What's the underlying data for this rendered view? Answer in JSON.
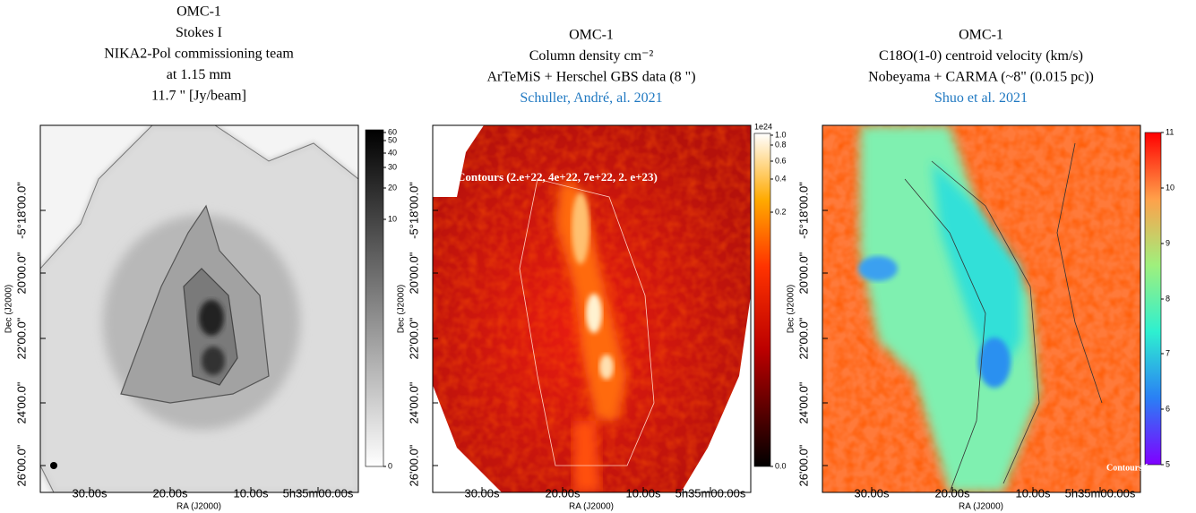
{
  "panels": [
    {
      "title_lines": [
        "OMC-1",
        "Stokes I",
        "NIKA2-Pol commissioning team",
        "at 1.15 mm",
        "11.7 \" [Jy/beam]"
      ],
      "xticks": [
        "30.00s",
        "20.00s",
        "10.00s",
        "5h35m00.00s"
      ],
      "yticks": [
        "26'00.0\"",
        "24'00.0\"",
        "22'00.0\"",
        "20'00.0\"",
        "-5°18'00.0\""
      ],
      "xlabel": "RA (J2000)",
      "ylabel": "Dec (J2000)",
      "colorbar_ticks": [
        60,
        50,
        40,
        30,
        20,
        10,
        0
      ]
    },
    {
      "title_lines": [
        "OMC-1",
        "Column density cm⁻²",
        "ArTeMiS + Herschel GBS data (8 \")"
      ],
      "title_link": "Schuller, André, al. 2021",
      "xticks": [
        "30.00s",
        "20.00s",
        "10.00s",
        "5h35m00.00s"
      ],
      "yticks": [
        "26'00.0\"",
        "24'00.0\"",
        "22'00.0\"",
        "20'00.0\"",
        "-5°18'00.0\""
      ],
      "xlabel": "RA (J2000)",
      "ylabel": "Dec (J2000)",
      "colorbar_ticks": [
        {
          "value": 1.0,
          "label": "1.0"
        },
        0.8,
        0.6,
        0.4,
        0.2,
        {
          "value": 0.0,
          "label": "0.0"
        }
      ],
      "colorbar_exponent": "1e24",
      "annotation": "Contours (2.e+22, 4e+22, 7e+22, 2. e+23)"
    },
    {
      "title_lines": [
        "OMC-1",
        "C18O(1-0) centroid velocity (km/s)",
        "Nobeyama + CARMA (~8\" (0.015 pc))"
      ],
      "title_link": "Shuo et al. 2021",
      "xticks": [
        "30.00s",
        "20.00s",
        "10.00s",
        "5h35m00.00s"
      ],
      "yticks": [
        "26'00.0\"",
        "24'00.0\"",
        "22'00.0\"",
        "20'00.0\"",
        "-5°18'00.0\""
      ],
      "xlabel": "RA (J2000)",
      "ylabel": "Dec (J2000)",
      "colorbar_ticks": [
        11,
        10,
        9,
        8,
        7,
        6,
        5
      ],
      "annotation": "Contours from"
    }
  ]
}
